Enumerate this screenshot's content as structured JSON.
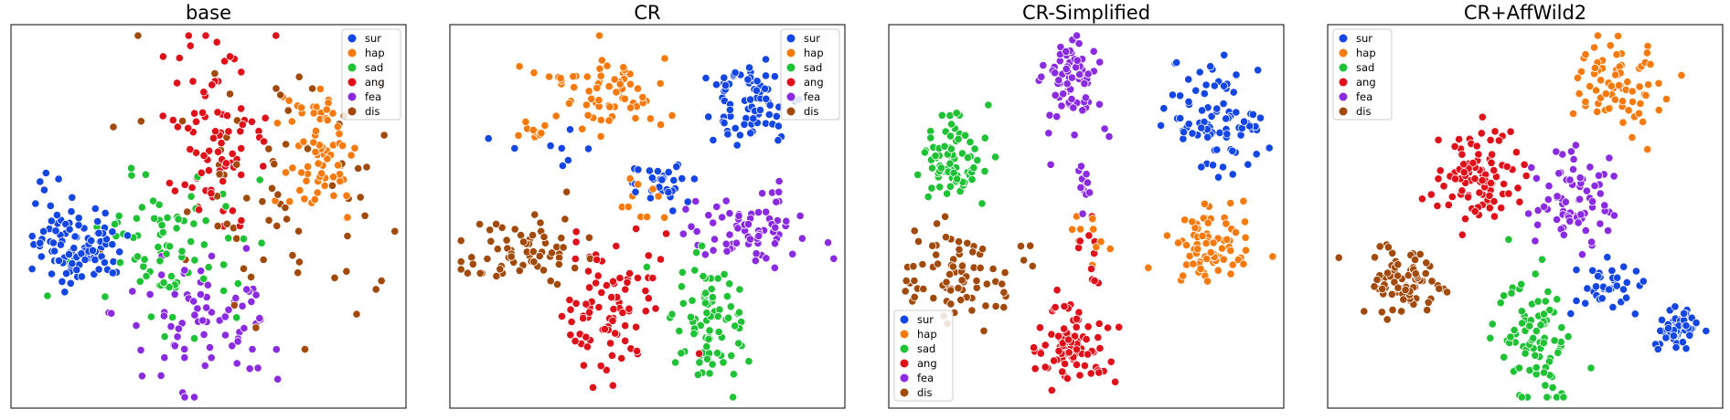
{
  "chart_data": {
    "type": "scatter",
    "description_of_axes": "t-SNE embedding, no axis ticks or labels",
    "palette": {
      "sur": "#1446e6",
      "hap": "#f97a0c",
      "sad": "#1ec234",
      "ang": "#e0101a",
      "fea": "#8a2be2",
      "dis": "#a14a0c"
    },
    "xlim": [
      0,
      100
    ],
    "ylim": [
      0,
      100
    ],
    "panels": [
      {
        "title": "base",
        "legend": {
          "position": "upper-right",
          "entries": [
            "sur",
            "hap",
            "sad",
            "ang",
            "fea",
            "dis"
          ]
        },
        "clusters": [
          {
            "label": "sur",
            "cx": 16,
            "cy": 58,
            "sx": 6,
            "sy": 5,
            "n": 95
          },
          {
            "label": "sur",
            "cx": 8,
            "cy": 45,
            "sx": 2,
            "sy": 6,
            "n": 10
          },
          {
            "label": "hap",
            "cx": 79,
            "cy": 34,
            "sx": 5,
            "sy": 11,
            "n": 70
          },
          {
            "label": "sad",
            "cx": 39,
            "cy": 60,
            "sx": 9,
            "sy": 10,
            "n": 80
          },
          {
            "label": "ang",
            "cx": 52,
            "cy": 27,
            "sx": 7,
            "sy": 11,
            "n": 80
          },
          {
            "label": "fea",
            "cx": 49,
            "cy": 77,
            "sx": 12,
            "sy": 11,
            "n": 75
          },
          {
            "label": "dis",
            "cx": 70,
            "cy": 42,
            "sx": 17,
            "sy": 18,
            "n": 70
          }
        ]
      },
      {
        "title": "CR",
        "legend": {
          "position": "upper-right",
          "entries": [
            "sur",
            "hap",
            "sad",
            "ang",
            "fea",
            "dis"
          ]
        },
        "clusters": [
          {
            "label": "sur",
            "cx": 76,
            "cy": 20,
            "sx": 5,
            "sy": 6,
            "n": 75
          },
          {
            "label": "sur",
            "cx": 54,
            "cy": 41,
            "sx": 4,
            "sy": 4,
            "n": 30
          },
          {
            "label": "sur",
            "cx": 23,
            "cy": 32,
            "sx": 5,
            "sy": 2,
            "n": 8
          },
          {
            "label": "hap",
            "cx": 40,
            "cy": 16,
            "sx": 7,
            "sy": 6,
            "n": 70
          },
          {
            "label": "hap",
            "cx": 19,
            "cy": 27,
            "sx": 3,
            "sy": 2,
            "n": 10
          },
          {
            "label": "hap",
            "cx": 49,
            "cy": 46,
            "sx": 3,
            "sy": 5,
            "n": 10
          },
          {
            "label": "sad",
            "cx": 66,
            "cy": 80,
            "sx": 5,
            "sy": 9,
            "n": 80
          },
          {
            "label": "ang",
            "cx": 39,
            "cy": 76,
            "sx": 7,
            "sy": 9,
            "n": 85
          },
          {
            "label": "fea",
            "cx": 78,
            "cy": 52,
            "sx": 9,
            "sy": 5,
            "n": 70
          },
          {
            "label": "dis",
            "cx": 15,
            "cy": 60,
            "sx": 8,
            "sy": 5,
            "n": 65
          }
        ]
      },
      {
        "title": "CR-Simplified",
        "legend": {
          "position": "lower-left",
          "entries": [
            "sur",
            "hap",
            "sad",
            "ang",
            "fea",
            "dis"
          ]
        },
        "clusters": [
          {
            "label": "sur",
            "cx": 85,
            "cy": 25,
            "sx": 6,
            "sy": 7,
            "n": 85
          },
          {
            "label": "hap",
            "cx": 82,
            "cy": 58,
            "sx": 5,
            "sy": 5,
            "n": 75
          },
          {
            "label": "hap",
            "cx": 51,
            "cy": 55,
            "sx": 3,
            "sy": 4,
            "n": 10
          },
          {
            "label": "sad",
            "cx": 15,
            "cy": 33,
            "sx": 5,
            "sy": 6,
            "n": 80
          },
          {
            "label": "ang",
            "cx": 45,
            "cy": 85,
            "sx": 5,
            "sy": 5,
            "n": 85
          },
          {
            "label": "ang",
            "cx": 51,
            "cy": 60,
            "sx": 2,
            "sy": 5,
            "n": 10
          },
          {
            "label": "fea",
            "cx": 46,
            "cy": 14,
            "sx": 4,
            "sy": 7,
            "n": 70
          },
          {
            "label": "fea",
            "cx": 50,
            "cy": 42,
            "sx": 1,
            "sy": 4,
            "n": 12
          },
          {
            "label": "dis",
            "cx": 16,
            "cy": 66,
            "sx": 7,
            "sy": 6,
            "n": 80
          }
        ]
      },
      {
        "title": "CR+AffWild2",
        "legend": {
          "position": "upper-left",
          "entries": [
            "sur",
            "hap",
            "sad",
            "ang",
            "fea",
            "dis"
          ]
        },
        "clusters": [
          {
            "label": "sur",
            "cx": 90,
            "cy": 80,
            "sx": 3,
            "sy": 4,
            "n": 55
          },
          {
            "label": "sur",
            "cx": 72,
            "cy": 69,
            "sx": 5,
            "sy": 3,
            "n": 35
          },
          {
            "label": "hap",
            "cx": 75,
            "cy": 14,
            "sx": 7,
            "sy": 6,
            "n": 75
          },
          {
            "label": "sad",
            "cx": 52,
            "cy": 83,
            "sx": 4,
            "sy": 10,
            "n": 85
          },
          {
            "label": "ang",
            "cx": 38,
            "cy": 40,
            "sx": 6,
            "sy": 6,
            "n": 95
          },
          {
            "label": "fea",
            "cx": 63,
            "cy": 46,
            "sx": 6,
            "sy": 7,
            "n": 70
          },
          {
            "label": "dis",
            "cx": 18,
            "cy": 68,
            "sx": 5,
            "sy": 4,
            "n": 80
          }
        ]
      }
    ]
  }
}
